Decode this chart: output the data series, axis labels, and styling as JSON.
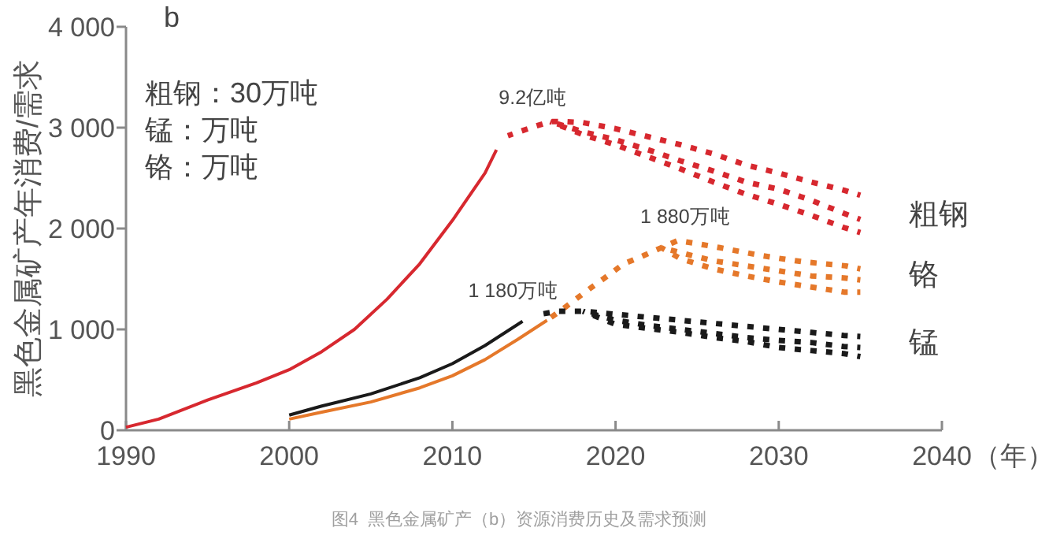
{
  "chart_data": {
    "type": "line",
    "ylabel": "黑色金属矿产年消费/需求",
    "xlabel": "（年）",
    "xlim": [
      1990,
      2040
    ],
    "xticks": [
      1990,
      2000,
      2010,
      2020,
      2030,
      2040
    ],
    "ylim": [
      0,
      4000
    ],
    "yticks": [
      0,
      {
        "value": 1000,
        "label": "1 000"
      },
      {
        "value": 2000,
        "label": "2 000"
      },
      {
        "value": 3000,
        "label": "3 000"
      },
      {
        "value": 4000,
        "label": "4 000"
      }
    ],
    "series": [
      {
        "color": "#d7282f",
        "line_style": "solid",
        "x": [
          1990,
          1992,
          1995,
          1998,
          2000,
          2002,
          2004,
          2006,
          2008,
          2010,
          2012,
          2012.7
        ],
        "values": [
          30,
          110,
          300,
          470,
          600,
          780,
          1000,
          1300,
          1650,
          2080,
          2550,
          2780
        ]
      },
      {
        "color": "#d7282f",
        "line_style": "dashed",
        "x": [
          2013.4,
          2015,
          2016,
          2017,
          2018,
          2020,
          2022,
          2024,
          2026,
          2028,
          2030,
          2032,
          2034,
          2035
        ],
        "values": [
          2920,
          3010,
          3060,
          3060,
          3050,
          2990,
          2910,
          2830,
          2740,
          2630,
          2550,
          2460,
          2380,
          2330
        ]
      },
      {
        "name": "粗钢",
        "color": "#d7282f",
        "line_style": "dashed",
        "x": [
          2016,
          2017,
          2018,
          2020,
          2022,
          2024,
          2026,
          2028,
          2030,
          2032,
          2034,
          2035
        ],
        "values": [
          3060,
          3010,
          2960,
          2880,
          2780,
          2670,
          2570,
          2460,
          2390,
          2280,
          2150,
          2090
        ]
      },
      {
        "color": "#d7282f",
        "line_style": "dashed",
        "x": [
          2016,
          2018,
          2020,
          2022,
          2024,
          2026,
          2028,
          2030,
          2032,
          2034,
          2035
        ],
        "values": [
          3060,
          2930,
          2830,
          2710,
          2590,
          2460,
          2340,
          2240,
          2130,
          2010,
          1960
        ]
      },
      {
        "color": "#e5782a",
        "line_style": "solid",
        "x": [
          2000,
          2002,
          2005,
          2008,
          2010,
          2012,
          2014,
          2015.8
        ],
        "values": [
          110,
          180,
          280,
          420,
          540,
          700,
          900,
          1090
        ]
      },
      {
        "color": "#e5782a",
        "line_style": "dashed",
        "x": [
          2015.8,
          2017,
          2018.3,
          2019.5,
          2020.5,
          2021.7,
          2022.8,
          2023.8,
          2025,
          2026.4,
          2027.7,
          2029,
          2030.2,
          2031.5,
          2032.8,
          2034.1,
          2035
        ],
        "values": [
          1090,
          1230,
          1390,
          1530,
          1650,
          1730,
          1810,
          1880,
          1850,
          1810,
          1770,
          1730,
          1700,
          1670,
          1650,
          1630,
          1600
        ]
      },
      {
        "name": "铬",
        "color": "#e5782a",
        "line_style": "dashed",
        "x": [
          2022.8,
          2024,
          2026,
          2028,
          2030,
          2032,
          2034,
          2035
        ],
        "values": [
          1810,
          1760,
          1680,
          1630,
          1580,
          1530,
          1510,
          1490
        ]
      },
      {
        "color": "#e5782a",
        "line_style": "dashed",
        "x": [
          2022.8,
          2024,
          2026,
          2028,
          2030,
          2032,
          2034,
          2035
        ],
        "values": [
          1810,
          1700,
          1600,
          1530,
          1470,
          1420,
          1370,
          1370
        ]
      },
      {
        "color": "#1a1a1a",
        "line_style": "solid",
        "x": [
          2000,
          2002,
          2005,
          2008,
          2010,
          2012,
          2014.3
        ],
        "values": [
          150,
          240,
          360,
          520,
          660,
          840,
          1080
        ]
      },
      {
        "color": "#1a1a1a",
        "line_style": "dashed",
        "x": [
          2015.4,
          2016.5,
          2018,
          2020,
          2022,
          2024,
          2026,
          2028,
          2030,
          2032,
          2034,
          2035
        ],
        "values": [
          1150,
          1180,
          1180,
          1150,
          1120,
          1090,
          1060,
          1030,
          1000,
          970,
          940,
          930
        ]
      },
      {
        "name": "锰",
        "color": "#1a1a1a",
        "line_style": "dashed",
        "x": [
          2018,
          2020,
          2022,
          2024,
          2026,
          2028,
          2030,
          2032,
          2034,
          2035
        ],
        "values": [
          1180,
          1090,
          1040,
          1000,
          960,
          920,
          890,
          870,
          830,
          820
        ]
      },
      {
        "color": "#1a1a1a",
        "line_style": "dashed",
        "x": [
          2018,
          2020,
          2022,
          2024,
          2026,
          2028,
          2030,
          2032,
          2034,
          2035
        ],
        "values": [
          1180,
          1050,
          1010,
          970,
          920,
          880,
          820,
          790,
          760,
          730
        ]
      }
    ],
    "annotations": [
      "b",
      "粗钢：30万吨",
      "锰：万吨",
      "铬：万吨",
      {
        "text": "9.2亿吨",
        "x": 2016,
        "y": 3060
      },
      {
        "text": "1 180万吨",
        "x": 2016.5,
        "y": 1180
      },
      {
        "text": "1 880万吨",
        "x": 2023.8,
        "y": 1880
      },
      "图4  黑色金属矿产（b）资源消费历史及需求预测"
    ]
  }
}
